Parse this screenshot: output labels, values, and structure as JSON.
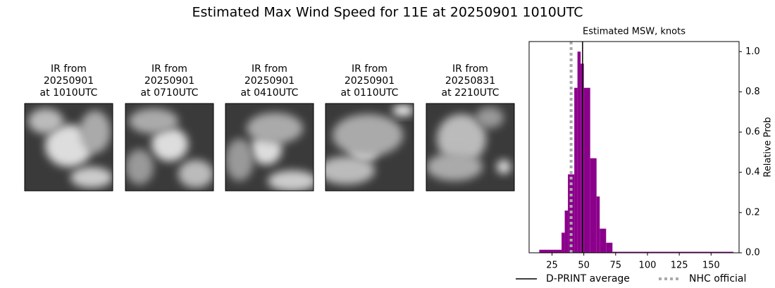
{
  "header": {
    "title": "Estimated Max Wind Speed for 11E at 20250901 1010UTC"
  },
  "panels": [
    {
      "lines": [
        "IR from",
        "20250901",
        "at 1010UTC"
      ]
    },
    {
      "lines": [
        "IR from",
        "20250901",
        "at 0710UTC"
      ]
    },
    {
      "lines": [
        "IR from",
        "20250901",
        "at 0410UTC"
      ]
    },
    {
      "lines": [
        "IR from",
        "20250901",
        "at 0110UTC"
      ]
    },
    {
      "lines": [
        "IR from",
        "20250831",
        "at 2210UTC"
      ]
    }
  ],
  "chart_data": {
    "type": "histogram",
    "title": "Estimated MSW, knots",
    "y_label": "Relative Prob",
    "bins": [
      15,
      32.5,
      35,
      37.5,
      42.5,
      45,
      47.5,
      50,
      55,
      60,
      62.5,
      67.5,
      72.5,
      167.5
    ],
    "counts": [
      0.015,
      0.1,
      0.21,
      0.39,
      0.82,
      1.0,
      0.94,
      0.82,
      0.47,
      0.28,
      0.12,
      0.05,
      0.005
    ],
    "color": "#8b008b",
    "xlim": [
      7,
      172
    ],
    "xticks": [
      25,
      50,
      75,
      100,
      125,
      150
    ],
    "ylim": [
      0,
      1.05
    ],
    "yticks": [
      {
        "value": 0,
        "label": "0.0"
      },
      0.2,
      0.4,
      0.6,
      0.8,
      {
        "value": 1,
        "label": "1.0"
      }
    ],
    "lines": [
      {
        "name": "D-PRINT average",
        "value": 49,
        "color": "#000000",
        "style": "solid"
      },
      {
        "name": "NHC official",
        "value": 40,
        "color": "#aaaaaa",
        "style": "dotted"
      }
    ],
    "legend": "bottom"
  }
}
